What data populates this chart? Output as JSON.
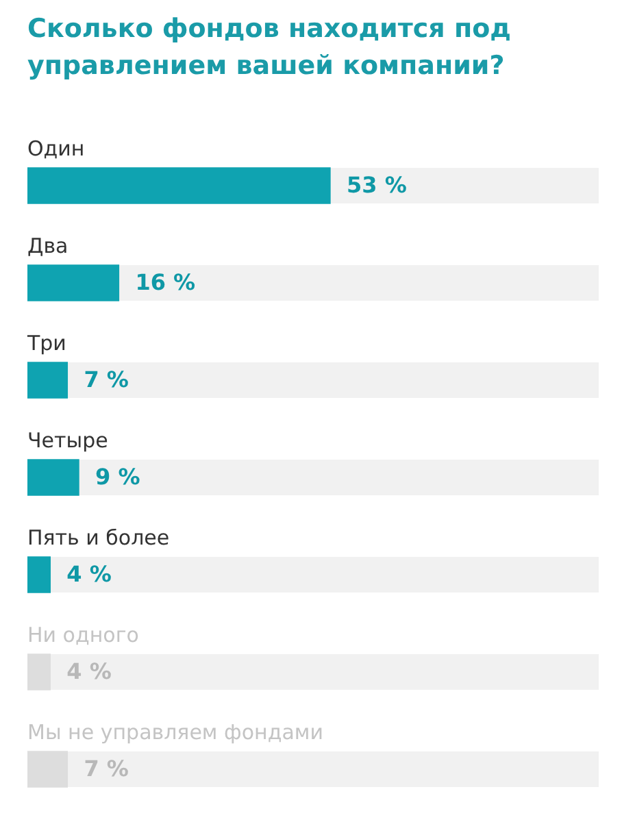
{
  "chart_data": {
    "type": "bar",
    "orientation": "horizontal",
    "title": "Сколько фондов находится под управлением вашей компании?",
    "categories": [
      "Один",
      "Два",
      "Три",
      "Четыре",
      "Пять и более",
      "Ни одного",
      "Мы не управляем фондами"
    ],
    "values": [
      53,
      16,
      7,
      9,
      4,
      4,
      7
    ],
    "value_labels": [
      "53 %",
      "16 %",
      "7 %",
      "9 %",
      "4 %",
      "4 %",
      "7 %"
    ],
    "colors": [
      "#0fa3b1",
      "#0fa3b1",
      "#0fa3b1",
      "#0fa3b1",
      "#0fa3b1",
      "#dddddd",
      "#dddddd"
    ],
    "xlim": [
      0,
      100
    ],
    "tick_labels": "y"
  }
}
